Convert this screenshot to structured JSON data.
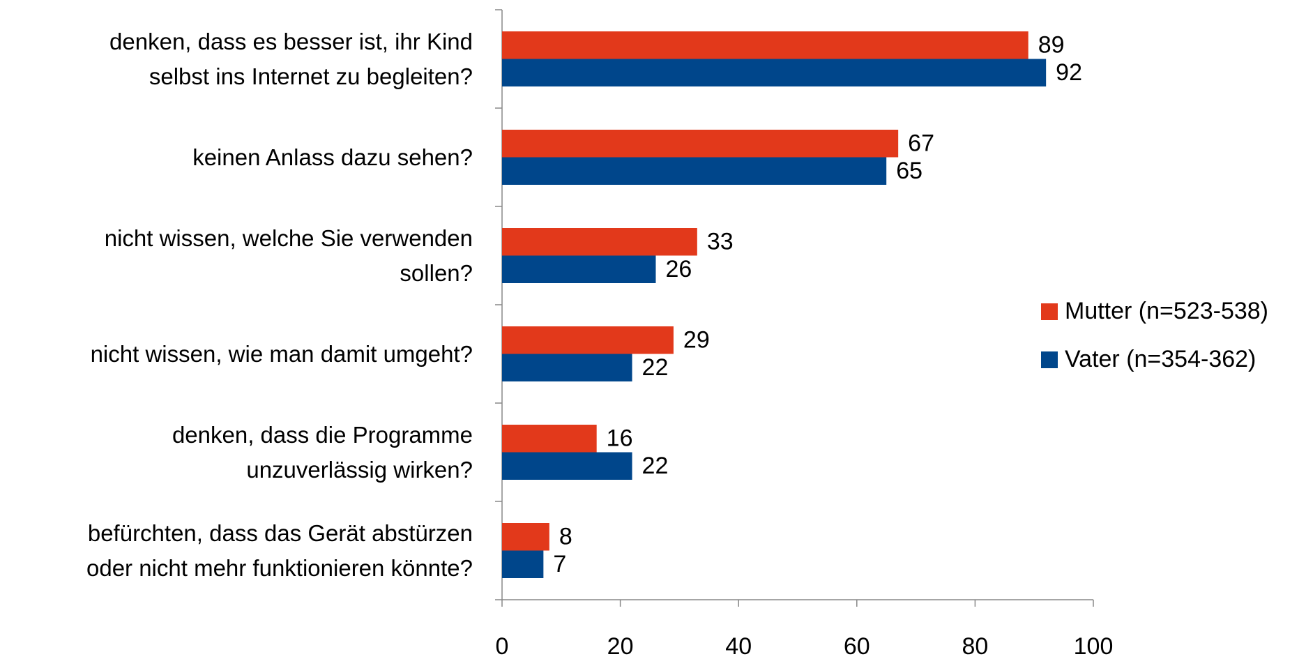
{
  "chart_data": {
    "type": "bar",
    "orientation": "horizontal",
    "categories": [
      "denken, dass es besser ist, ihr Kind\nselbst ins Internet zu begleiten?",
      "keinen Anlass dazu sehen?",
      "nicht wissen, welche Sie verwenden\nsollen?",
      "nicht wissen, wie man damit umgeht?",
      "denken, dass die Programme\nunzuverlässig wirken?",
      "befürchten, dass das Gerät abstürzen\noder nicht mehr funktionieren könnte?"
    ],
    "series": [
      {
        "name": "Mutter (n=523-538)",
        "color": "#e2391b",
        "values": [
          89,
          67,
          33,
          29,
          16,
          8
        ]
      },
      {
        "name": "Vater (n=354-362)",
        "color": "#00468b",
        "values": [
          92,
          65,
          26,
          22,
          22,
          7
        ]
      }
    ],
    "xlim": [
      0,
      100
    ],
    "xticks": [
      0,
      20,
      40,
      60,
      80,
      100
    ],
    "legend": "right"
  }
}
